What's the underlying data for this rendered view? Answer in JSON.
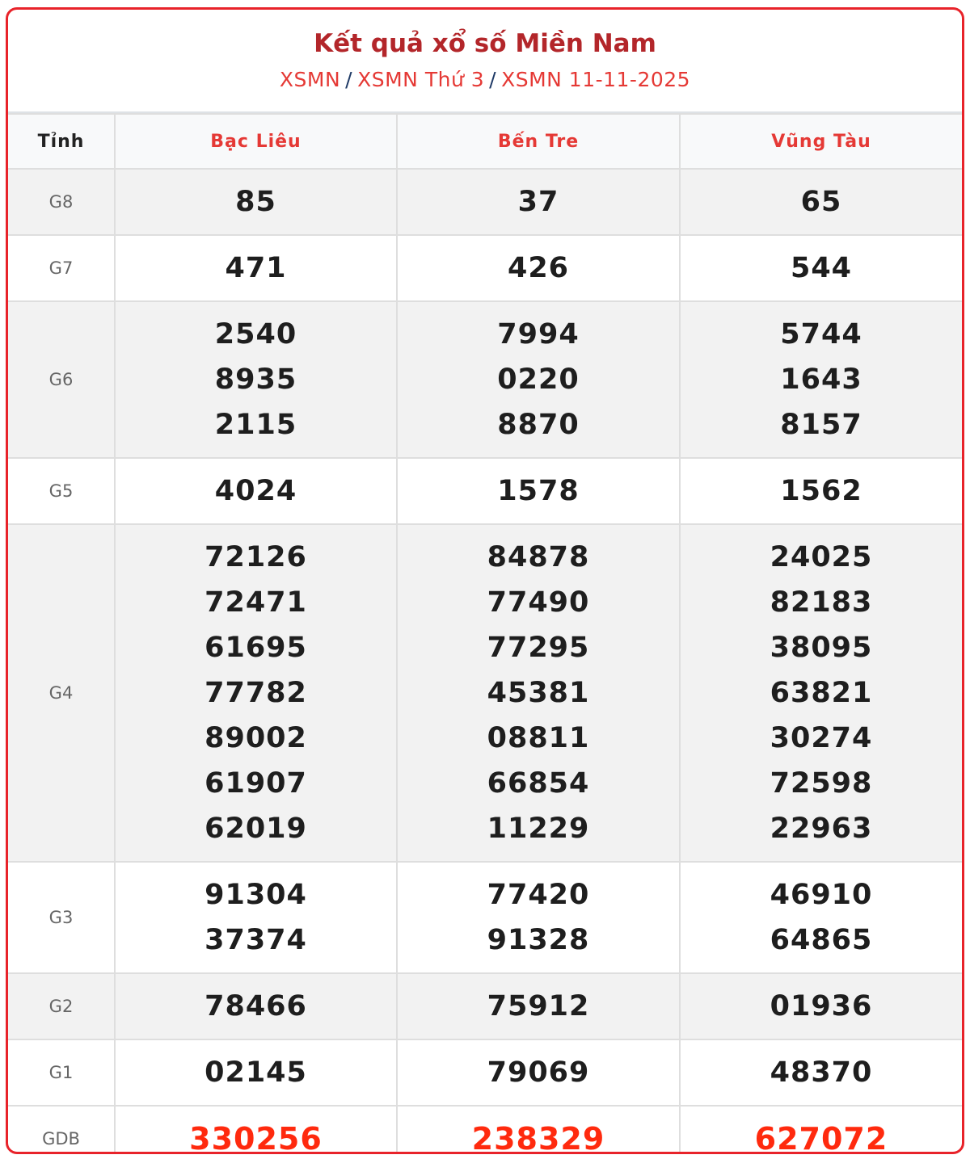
{
  "header": {
    "title": "Kết quả xổ số Miền Nam",
    "breadcrumb": [
      "XSMN",
      "XSMN Thứ 3",
      "XSMN 11-11-2025"
    ],
    "separator": "/"
  },
  "table": {
    "columns": [
      "Tỉnh",
      "Bạc Liêu",
      "Bến Tre",
      "Vũng Tàu"
    ],
    "rows": [
      {
        "prize": "G8",
        "shade": "gray",
        "values": [
          [
            "85"
          ],
          [
            "37"
          ],
          [
            "65"
          ]
        ]
      },
      {
        "prize": "G7",
        "shade": "white",
        "values": [
          [
            "471"
          ],
          [
            "426"
          ],
          [
            "544"
          ]
        ]
      },
      {
        "prize": "G6",
        "shade": "gray",
        "values": [
          [
            "2540",
            "8935",
            "2115"
          ],
          [
            "7994",
            "0220",
            "8870"
          ],
          [
            "5744",
            "1643",
            "8157"
          ]
        ]
      },
      {
        "prize": "G5",
        "shade": "white",
        "values": [
          [
            "4024"
          ],
          [
            "1578"
          ],
          [
            "1562"
          ]
        ]
      },
      {
        "prize": "G4",
        "shade": "gray",
        "values": [
          [
            "72126",
            "72471",
            "61695",
            "77782",
            "89002",
            "61907",
            "62019"
          ],
          [
            "84878",
            "77490",
            "77295",
            "45381",
            "08811",
            "66854",
            "11229"
          ],
          [
            "24025",
            "82183",
            "38095",
            "63821",
            "30274",
            "72598",
            "22963"
          ]
        ]
      },
      {
        "prize": "G3",
        "shade": "white",
        "values": [
          [
            "91304",
            "37374"
          ],
          [
            "77420",
            "91328"
          ],
          [
            "46910",
            "64865"
          ]
        ]
      },
      {
        "prize": "G2",
        "shade": "gray",
        "values": [
          [
            "78466"
          ],
          [
            "75912"
          ],
          [
            "01936"
          ]
        ]
      },
      {
        "prize": "G1",
        "shade": "white",
        "values": [
          [
            "02145"
          ],
          [
            "79069"
          ],
          [
            "48370"
          ]
        ]
      },
      {
        "prize": "GDB",
        "shade": "white",
        "special": true,
        "values": [
          [
            "330256"
          ],
          [
            "238329"
          ],
          [
            "627072"
          ]
        ]
      }
    ]
  },
  "colors": {
    "accent": "#e8232a",
    "title": "#b3262a",
    "special_prize": "#ff2a0e"
  }
}
